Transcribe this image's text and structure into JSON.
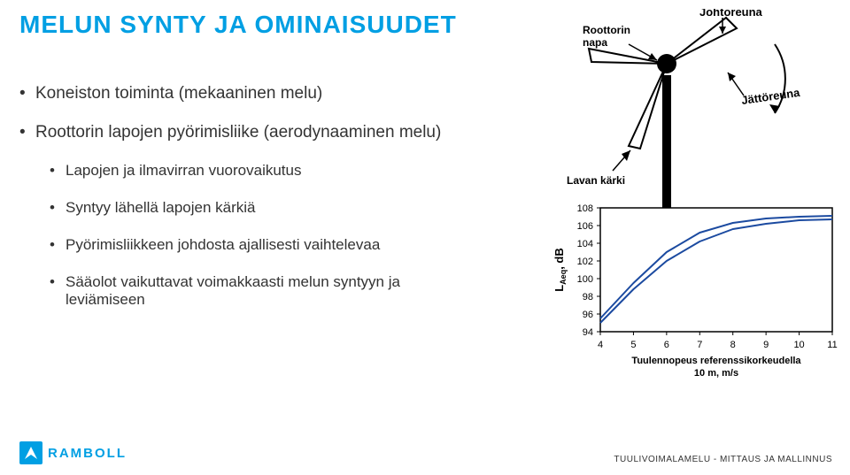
{
  "title": "MELUN SYNTY JA OMINAISUUDET",
  "bullets": {
    "b1": "Koneiston toiminta (mekaaninen melu)",
    "b2": "Roottorin lapojen pyörimisliike (aerodynaaminen melu)",
    "b3": "Lapojen ja ilmavirran vuorovaikutus",
    "b4": "Syntyy lähellä lapojen kärkiä",
    "b5": "Pyörimisliikkeen johdosta ajallisesti vaihtelevaa",
    "b6": "Sääolot vaikuttavat voimakkaasti melun syntyyn ja leviämiseen"
  },
  "turbine_labels": {
    "johtoreuna": "Johtoreuna",
    "roottorin_napa": "Roottorin\nnapa",
    "jattoreuna": "Jättöreuna",
    "lavan_karki": "Lavan kärki"
  },
  "chart": {
    "type": "line",
    "x_ticks": [
      4,
      5,
      6,
      7,
      8,
      9,
      10,
      11
    ],
    "y_ticks": [
      94,
      96,
      98,
      100,
      102,
      104,
      106,
      108
    ],
    "xlim": [
      4,
      11
    ],
    "ylim": [
      94,
      108
    ],
    "y_label_html": "L<tspan baseline-shift='-3' font-size='9'>Aeq</tspan>, dB",
    "x_label": "Tuulennopeus referenssikorkeudella 10 m, m/s",
    "background_color": "#ffffff",
    "axis_color": "#000000",
    "line_width": 2,
    "series": [
      {
        "color": "#1b4aa0",
        "points": [
          [
            4,
            95.5
          ],
          [
            5,
            99.5
          ],
          [
            6,
            103
          ],
          [
            7,
            105.2
          ],
          [
            8,
            106.3
          ],
          [
            9,
            106.8
          ],
          [
            10,
            107.0
          ],
          [
            11,
            107.1
          ]
        ]
      },
      {
        "color": "#1b4aa0",
        "points": [
          [
            4,
            95
          ],
          [
            5,
            98.8
          ],
          [
            6,
            102
          ],
          [
            7,
            104.2
          ],
          [
            8,
            105.6
          ],
          [
            9,
            106.2
          ],
          [
            10,
            106.6
          ],
          [
            11,
            106.7
          ]
        ]
      }
    ],
    "tick_fontsize": 11,
    "axislabel_fontsize": 11,
    "ylabel_fontsize": 13
  },
  "footer": "TUULIVOIMALAMELU - MITTAUS JA MALLINNUS",
  "logo_text": "RAMBOLL",
  "colors": {
    "title": "#009fe3",
    "text": "#333333",
    "brand": "#009fe3"
  }
}
